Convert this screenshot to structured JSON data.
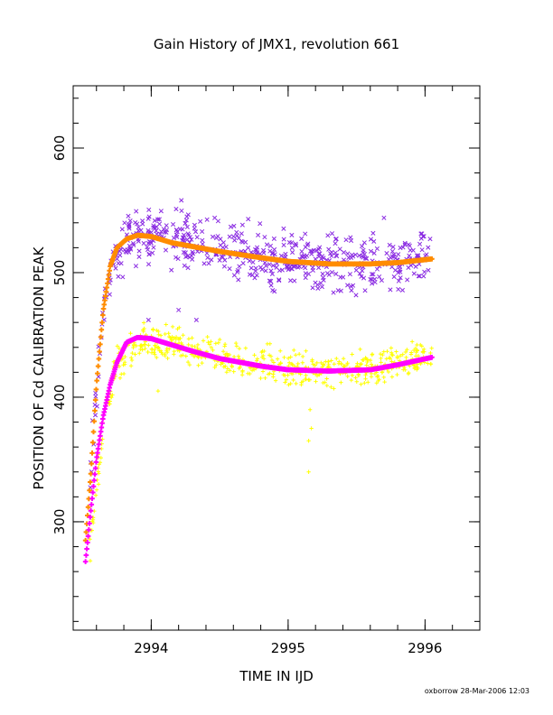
{
  "chart_data": {
    "type": "scatter",
    "title": "Gain History of JMX1, revolution 661",
    "xlabel": "TIME IN IJD",
    "ylabel": "POSITION OF Cd CALIBRATION PEAK",
    "footer": "oxborrow 28-Mar-2006 12:03",
    "xlim": [
      2993.43,
      2996.4
    ],
    "ylim": [
      213,
      650
    ],
    "x_ticks": [
      2994,
      2995,
      2996
    ],
    "x_tick_labels": [
      "2994",
      "2995",
      "2996"
    ],
    "y_ticks": [
      300,
      400,
      500,
      600
    ],
    "y_tick_labels": [
      "300",
      "400",
      "500",
      "600"
    ],
    "x_minor_step": 0.2,
    "y_minor_step": 20,
    "grid": false,
    "series": [
      {
        "marker": "x",
        "color": "#8a2be2",
        "kind": "scatter-noisy",
        "x_range": [
          2993.55,
          2996.05
        ],
        "anchors": [
          [
            2993.55,
            330
          ],
          [
            2993.6,
            410
          ],
          [
            2993.65,
            470
          ],
          [
            2993.7,
            500
          ],
          [
            2993.75,
            515
          ],
          [
            2993.85,
            527
          ],
          [
            2993.95,
            530
          ],
          [
            2994.1,
            528
          ],
          [
            2994.3,
            525
          ],
          [
            2994.6,
            518
          ],
          [
            2995.0,
            510
          ],
          [
            2995.3,
            508
          ],
          [
            2995.6,
            507
          ],
          [
            2996.05,
            512
          ]
        ],
        "noise": 15,
        "outliers": [
          [
            2994.22,
            558
          ],
          [
            2994.33,
            462
          ],
          [
            2994.2,
            470
          ],
          [
            2993.98,
            462
          ],
          [
            2995.7,
            544
          ]
        ]
      },
      {
        "marker": "+",
        "color": "#ffff00",
        "kind": "scatter-noisy",
        "x_range": [
          2993.55,
          2996.05
        ],
        "anchors": [
          [
            2993.55,
            275
          ],
          [
            2993.6,
            330
          ],
          [
            2993.65,
            375
          ],
          [
            2993.7,
            405
          ],
          [
            2993.75,
            425
          ],
          [
            2993.85,
            440
          ],
          [
            2993.95,
            445
          ],
          [
            2994.1,
            443
          ],
          [
            2994.3,
            438
          ],
          [
            2994.6,
            430
          ],
          [
            2995.0,
            422
          ],
          [
            2995.3,
            421
          ],
          [
            2995.6,
            423
          ],
          [
            2996.05,
            434
          ]
        ],
        "noise": 10,
        "outliers": [
          [
            2995.15,
            340
          ],
          [
            2995.15,
            365
          ],
          [
            2995.17,
            375
          ],
          [
            2995.16,
            390
          ],
          [
            2994.05,
            405
          ]
        ]
      },
      {
        "marker": "+",
        "color": "#ff8c00",
        "kind": "smooth-fit",
        "x_range": [
          2993.52,
          2996.05
        ],
        "anchors": [
          [
            2993.52,
            285
          ],
          [
            2993.56,
            340
          ],
          [
            2993.6,
            410
          ],
          [
            2993.65,
            470
          ],
          [
            2993.7,
            505
          ],
          [
            2993.75,
            520
          ],
          [
            2993.82,
            527
          ],
          [
            2993.9,
            530
          ],
          [
            2994.0,
            529
          ],
          [
            2994.15,
            524
          ],
          [
            2994.3,
            521
          ],
          [
            2994.5,
            517
          ],
          [
            2994.8,
            512
          ],
          [
            2995.0,
            509
          ],
          [
            2995.3,
            507
          ],
          [
            2995.6,
            507
          ],
          [
            2995.8,
            508
          ],
          [
            2996.05,
            511
          ]
        ]
      },
      {
        "marker": "+",
        "color": "#ff00ff",
        "kind": "smooth-fit",
        "x_range": [
          2993.52,
          2996.05
        ],
        "anchors": [
          [
            2993.52,
            268
          ],
          [
            2993.56,
            310
          ],
          [
            2993.6,
            350
          ],
          [
            2993.65,
            385
          ],
          [
            2993.7,
            410
          ],
          [
            2993.75,
            428
          ],
          [
            2993.82,
            444
          ],
          [
            2993.9,
            448
          ],
          [
            2994.0,
            447
          ],
          [
            2994.15,
            442
          ],
          [
            2994.3,
            437
          ],
          [
            2994.5,
            431
          ],
          [
            2994.8,
            425
          ],
          [
            2995.0,
            422
          ],
          [
            2995.3,
            421
          ],
          [
            2995.6,
            422
          ],
          [
            2995.8,
            426
          ],
          [
            2996.05,
            432
          ]
        ]
      }
    ]
  }
}
